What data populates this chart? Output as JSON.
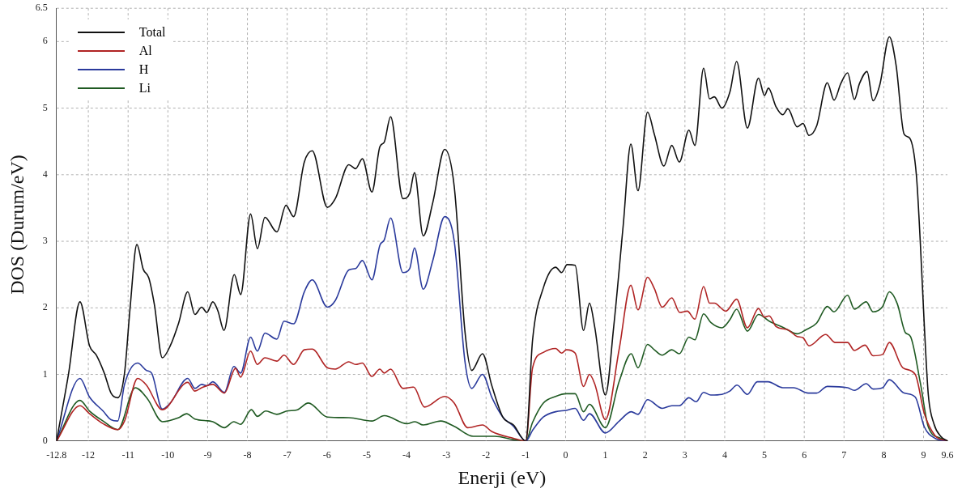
{
  "chart_data": {
    "type": "line",
    "xlabel": "Enerji (eV)",
    "ylabel": "DOS (Durum/eV)",
    "xlim": [
      -12.8,
      9.6
    ],
    "xticks": [
      -12.8,
      -12,
      -11,
      -10,
      -9,
      -8,
      -7,
      -6,
      -5,
      -4,
      -3,
      -2,
      -1,
      0,
      1,
      2,
      3,
      4,
      5,
      6,
      7,
      8,
      9,
      9.6
    ],
    "ylim": [
      0,
      6.5
    ],
    "yticks": [
      0,
      1,
      2,
      3,
      4,
      5,
      6,
      6.5
    ],
    "grid": true,
    "legend": "top left",
    "series": [
      {
        "name": "Total",
        "color": "#111111",
        "x": [
          -12.8,
          -12.5,
          -12.21,
          -11.97,
          -11.8,
          -11.6,
          -11.43,
          -11.26,
          -11.09,
          -10.95,
          -10.78,
          -10.62,
          -10.48,
          -10.34,
          -10.14,
          -9.94,
          -9.73,
          -9.5,
          -9.32,
          -9.15,
          -9.02,
          -8.87,
          -8.74,
          -8.59,
          -8.33,
          -8.17,
          -7.92,
          -7.75,
          -7.56,
          -7.26,
          -7.03,
          -6.84,
          -6.57,
          -6.37,
          -5.99,
          -5.79,
          -5.45,
          -5.28,
          -5.11,
          -4.87,
          -4.67,
          -4.56,
          -4.4,
          -4.09,
          -3.92,
          -3.8,
          -3.58,
          -3.34,
          -3.04,
          -2.8,
          -2.53,
          -2.36,
          -2.09,
          -1.85,
          -1.58,
          -1.31,
          -1.0,
          -0.83,
          -0.56,
          -0.25,
          -0.1,
          0.04,
          0.24,
          0.45,
          0.6,
          0.73,
          1.0,
          1.21,
          1.45,
          1.64,
          1.82,
          2.06,
          2.23,
          2.47,
          2.67,
          2.86,
          3.1,
          3.25,
          3.47,
          3.62,
          3.74,
          3.93,
          4.13,
          4.3,
          4.57,
          4.85,
          5.0,
          5.1,
          5.29,
          5.46,
          5.59,
          5.82,
          5.97,
          6.12,
          6.31,
          6.58,
          6.75,
          6.92,
          7.09,
          7.26,
          7.39,
          7.58,
          7.73,
          7.9,
          8.14,
          8.31,
          8.51,
          8.65,
          8.82,
          8.92,
          9.02,
          9.12,
          9.26,
          9.43,
          9.6
        ],
        "values": [
          0,
          1.0,
          2.09,
          1.43,
          1.29,
          1.02,
          0.72,
          0.65,
          1.02,
          2.0,
          2.95,
          2.58,
          2.45,
          2.05,
          1.25,
          1.43,
          1.77,
          2.24,
          1.9,
          2.01,
          1.93,
          2.09,
          1.95,
          1.66,
          2.5,
          2.2,
          3.41,
          2.89,
          3.36,
          3.14,
          3.54,
          3.37,
          4.19,
          4.36,
          3.51,
          3.64,
          4.15,
          4.09,
          4.24,
          3.74,
          4.42,
          4.49,
          4.87,
          3.64,
          3.72,
          4.03,
          3.08,
          3.58,
          4.38,
          3.82,
          1.64,
          1.06,
          1.31,
          0.82,
          0.36,
          0.24,
          0,
          1.52,
          2.3,
          2.61,
          2.53,
          2.65,
          2.64,
          1.66,
          2.07,
          1.72,
          0.69,
          1.72,
          3.25,
          4.46,
          3.76,
          4.94,
          4.61,
          4.13,
          4.44,
          4.19,
          4.67,
          4.44,
          5.6,
          5.14,
          5.17,
          5.0,
          5.24,
          5.7,
          4.7,
          5.45,
          5.19,
          5.3,
          5.02,
          4.9,
          4.99,
          4.72,
          4.77,
          4.59,
          4.73,
          5.38,
          5.12,
          5.37,
          5.53,
          5.13,
          5.37,
          5.55,
          5.11,
          5.35,
          6.07,
          5.64,
          4.61,
          4.55,
          3.99,
          2.96,
          1.72,
          0.69,
          0.26,
          0.07,
          0
        ]
      },
      {
        "name": "Al",
        "color": "#b02424",
        "x": [
          -12.8,
          -12.21,
          -11.97,
          -11.63,
          -11.26,
          -11.09,
          -10.76,
          -10.54,
          -10.14,
          -9.5,
          -9.32,
          -9.15,
          -8.87,
          -8.58,
          -8.3,
          -8.17,
          -7.92,
          -7.75,
          -7.56,
          -7.26,
          -7.08,
          -6.84,
          -6.57,
          -6.37,
          -5.99,
          -5.79,
          -5.45,
          -5.28,
          -5.11,
          -4.87,
          -4.67,
          -4.56,
          -4.4,
          -4.09,
          -3.82,
          -3.55,
          -3.04,
          -2.8,
          -2.46,
          -2.09,
          -1.85,
          -1.31,
          -1.0,
          -0.83,
          -0.56,
          -0.25,
          -0.1,
          0.02,
          0.24,
          0.45,
          0.6,
          0.73,
          1.0,
          1.35,
          1.64,
          1.82,
          2.06,
          2.23,
          2.43,
          2.67,
          2.87,
          3.06,
          3.25,
          3.47,
          3.62,
          3.74,
          4.03,
          4.3,
          4.57,
          4.85,
          5.0,
          5.12,
          5.29,
          5.59,
          5.82,
          5.97,
          6.12,
          6.54,
          6.78,
          7.09,
          7.26,
          7.53,
          7.73,
          7.97,
          8.14,
          8.48,
          8.79,
          9.02,
          9.29,
          9.6
        ],
        "values": [
          0,
          0.53,
          0.41,
          0.26,
          0.17,
          0.3,
          0.94,
          0.84,
          0.47,
          0.88,
          0.75,
          0.8,
          0.85,
          0.72,
          1.09,
          0.96,
          1.35,
          1.15,
          1.25,
          1.2,
          1.29,
          1.15,
          1.37,
          1.38,
          1.1,
          1.08,
          1.19,
          1.15,
          1.17,
          0.97,
          1.08,
          1.02,
          1.08,
          0.79,
          0.81,
          0.51,
          0.67,
          0.57,
          0.2,
          0.24,
          0.14,
          0.04,
          0,
          1.1,
          1.33,
          1.39,
          1.32,
          1.37,
          1.32,
          0.82,
          1.0,
          0.86,
          0.32,
          1.39,
          2.34,
          1.97,
          2.46,
          2.29,
          2.01,
          2.15,
          1.93,
          1.95,
          1.83,
          2.32,
          2.07,
          2.07,
          1.95,
          2.13,
          1.7,
          1.99,
          1.86,
          1.88,
          1.72,
          1.67,
          1.57,
          1.55,
          1.43,
          1.6,
          1.48,
          1.48,
          1.36,
          1.44,
          1.28,
          1.3,
          1.48,
          1.1,
          1.0,
          0.41,
          0.08,
          0
        ]
      },
      {
        "name": "H",
        "color": "#2a3a9c",
        "x": [
          -12.8,
          -12.21,
          -11.97,
          -11.63,
          -11.43,
          -11.26,
          -11.09,
          -10.76,
          -10.54,
          -10.41,
          -10.14,
          -9.94,
          -9.5,
          -9.32,
          -9.15,
          -9.02,
          -8.87,
          -8.58,
          -8.34,
          -8.17,
          -7.92,
          -7.75,
          -7.56,
          -7.26,
          -7.08,
          -6.84,
          -6.57,
          -6.37,
          -5.99,
          -5.79,
          -5.45,
          -5.28,
          -5.11,
          -4.87,
          -4.67,
          -4.56,
          -4.4,
          -4.09,
          -3.92,
          -3.8,
          -3.58,
          -3.34,
          -3.04,
          -2.8,
          -2.53,
          -2.36,
          -2.09,
          -1.85,
          -1.58,
          -1.31,
          -1.0,
          -0.83,
          -0.56,
          -0.25,
          0.02,
          0.24,
          0.45,
          0.6,
          1.0,
          1.35,
          1.65,
          1.82,
          2.06,
          2.43,
          2.67,
          2.86,
          3.1,
          3.28,
          3.47,
          3.65,
          3.93,
          4.13,
          4.31,
          4.57,
          4.82,
          5.09,
          5.46,
          5.73,
          6.1,
          6.31,
          6.58,
          7.09,
          7.26,
          7.56,
          7.73,
          7.97,
          8.14,
          8.51,
          8.79,
          9.02,
          9.29,
          9.6
        ],
        "values": [
          0,
          0.94,
          0.66,
          0.45,
          0.32,
          0.3,
          0.85,
          1.17,
          1.06,
          1.02,
          0.48,
          0.57,
          0.94,
          0.79,
          0.85,
          0.83,
          0.89,
          0.73,
          1.12,
          1.02,
          1.56,
          1.35,
          1.62,
          1.53,
          1.8,
          1.76,
          2.24,
          2.42,
          2.01,
          2.11,
          2.57,
          2.59,
          2.71,
          2.42,
          2.94,
          3.02,
          3.35,
          2.53,
          2.59,
          2.9,
          2.28,
          2.71,
          3.37,
          3.0,
          1.19,
          0.79,
          1.0,
          0.65,
          0.36,
          0.22,
          0,
          0.16,
          0.36,
          0.44,
          0.46,
          0.49,
          0.31,
          0.41,
          0.12,
          0.3,
          0.44,
          0.4,
          0.62,
          0.49,
          0.53,
          0.53,
          0.65,
          0.59,
          0.73,
          0.69,
          0.7,
          0.75,
          0.84,
          0.7,
          0.89,
          0.89,
          0.8,
          0.8,
          0.72,
          0.72,
          0.82,
          0.8,
          0.76,
          0.86,
          0.78,
          0.8,
          0.92,
          0.72,
          0.66,
          0.21,
          0.04,
          0
        ]
      },
      {
        "name": "Li",
        "color": "#1f5a22",
        "x": [
          -12.8,
          -12.21,
          -11.97,
          -11.63,
          -11.26,
          -10.82,
          -10.51,
          -10.14,
          -9.73,
          -9.53,
          -9.32,
          -8.87,
          -8.58,
          -8.34,
          -8.17,
          -7.9,
          -7.75,
          -7.54,
          -7.26,
          -7.01,
          -6.74,
          -6.47,
          -5.99,
          -5.45,
          -4.87,
          -4.56,
          -3.99,
          -3.79,
          -3.58,
          -3.14,
          -2.8,
          -2.32,
          -1.78,
          -1.31,
          -1.0,
          -0.83,
          -0.56,
          -0.25,
          0.02,
          0.24,
          0.45,
          0.6,
          1.0,
          1.35,
          1.65,
          1.82,
          2.06,
          2.23,
          2.43,
          2.67,
          2.86,
          3.1,
          3.25,
          3.47,
          3.65,
          3.93,
          4.13,
          4.3,
          4.57,
          4.85,
          5.12,
          5.49,
          5.82,
          6.04,
          6.31,
          6.58,
          6.75,
          7.09,
          7.26,
          7.56,
          7.73,
          7.97,
          8.14,
          8.34,
          8.54,
          8.67,
          8.92,
          9.12,
          9.43,
          9.6
        ],
        "values": [
          0,
          0.61,
          0.45,
          0.3,
          0.17,
          0.8,
          0.63,
          0.29,
          0.35,
          0.41,
          0.33,
          0.29,
          0.2,
          0.29,
          0.25,
          0.47,
          0.37,
          0.45,
          0.4,
          0.45,
          0.47,
          0.57,
          0.36,
          0.35,
          0.3,
          0.38,
          0.26,
          0.29,
          0.24,
          0.3,
          0.22,
          0.07,
          0.07,
          0.02,
          0,
          0.28,
          0.57,
          0.67,
          0.71,
          0.71,
          0.44,
          0.55,
          0.2,
          0.9,
          1.31,
          1.1,
          1.45,
          1.37,
          1.29,
          1.37,
          1.31,
          1.56,
          1.52,
          1.91,
          1.78,
          1.7,
          1.82,
          1.98,
          1.65,
          1.9,
          1.8,
          1.7,
          1.61,
          1.67,
          1.77,
          2.02,
          1.94,
          2.19,
          1.98,
          2.09,
          1.94,
          2.02,
          2.24,
          2.06,
          1.63,
          1.57,
          0.87,
          0.21,
          0.04,
          0
        ]
      }
    ]
  }
}
